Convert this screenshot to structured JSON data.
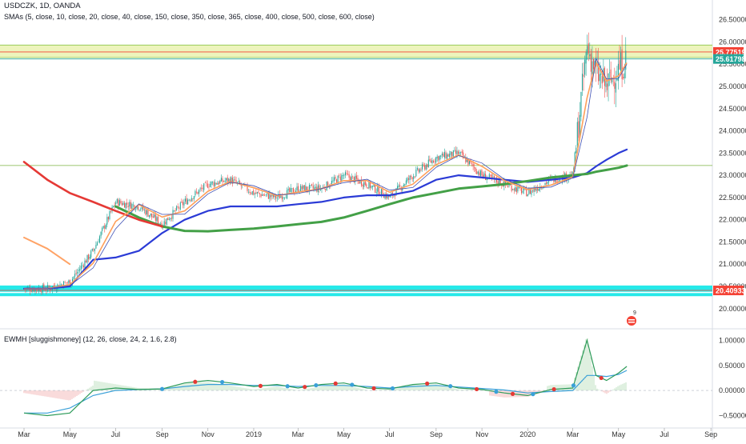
{
  "header": {
    "symbol_line": "USDCZK, 1D, OANDA",
    "sma_line": "SMAs (5, close, 10, close, 20, close, 40, close, 150, close, 350, close, 365, close, 400, close, 500, close, 600, close)",
    "indicator_line": "EWMH [sluggishmoney] (12, 26, close, 24, 2, 1.6, 2.8)"
  },
  "badge": {
    "label": "9",
    "icon": "flag-badge-icon"
  },
  "colors": {
    "candle_up": "#26a69a",
    "candle_down": "#ef5350",
    "sma_fast": "#ef5350",
    "sma_mid": "#ff9f5a",
    "sma_blue": "#2b3bd6",
    "sma_green": "#43a047",
    "sma_red_slow": "#e53935",
    "sma_orange_slow": "#ffa366",
    "band_cyan": "#00e5e5",
    "band_yellow": "#e6f0a0",
    "tag_red": "#f44336",
    "tag_teal": "#26a69a",
    "macd_blue": "#3aa0d8",
    "osc_green": "#2e9b5a",
    "osc_red": "#e53935"
  },
  "chart_data": [
    {
      "type": "line",
      "title": "USDCZK, 1D, OANDA",
      "x": [
        "2018-03-01",
        "2018-04-01",
        "2018-05-01",
        "2018-06-01",
        "2018-07-01",
        "2018-08-01",
        "2018-09-01",
        "2018-10-01",
        "2018-11-01",
        "2018-12-01",
        "2019-01-01",
        "2019-02-01",
        "2019-03-01",
        "2019-04-01",
        "2019-05-01",
        "2019-06-01",
        "2019-07-01",
        "2019-08-01",
        "2019-09-01",
        "2019-10-01",
        "2019-11-01",
        "2019-12-01",
        "2020-01-01",
        "2020-02-01",
        "2020-03-01",
        "2020-03-20",
        "2020-04-01",
        "2020-04-15",
        "2020-05-01",
        "2020-05-12"
      ],
      "series": [
        {
          "type": "candles-close",
          "values": [
            20.45,
            20.45,
            20.6,
            21.3,
            22.4,
            22.3,
            21.9,
            22.4,
            22.8,
            22.9,
            22.6,
            22.5,
            22.7,
            22.7,
            23.0,
            22.8,
            22.5,
            23.0,
            23.4,
            23.5,
            23.0,
            22.8,
            22.6,
            22.9,
            23.0,
            25.9,
            25.3,
            25.0,
            25.4,
            25.62
          ]
        },
        {
          "type": "sma-blue",
          "values": [
            20.45,
            20.45,
            20.5,
            21.1,
            21.15,
            21.3,
            21.7,
            22.0,
            22.2,
            22.3,
            22.3,
            22.3,
            22.35,
            22.4,
            22.5,
            22.55,
            22.55,
            22.65,
            22.9,
            23.0,
            22.95,
            22.9,
            22.85,
            22.9,
            22.95,
            23.05,
            23.2,
            23.35,
            23.5,
            23.58
          ]
        },
        {
          "type": "sma-green",
          "values": [
            null,
            null,
            null,
            null,
            22.3,
            22.05,
            21.85,
            21.75,
            21.74,
            21.77,
            21.8,
            21.85,
            21.9,
            21.95,
            22.05,
            22.2,
            22.35,
            22.5,
            22.6,
            22.7,
            22.75,
            22.8,
            22.87,
            22.95,
            23.0,
            23.03,
            23.08,
            23.12,
            23.17,
            23.22
          ]
        },
        {
          "type": "sma-red-slow",
          "values": [
            23.3,
            22.9,
            22.6,
            22.4,
            22.2,
            22.0,
            21.85,
            null,
            null,
            null,
            null,
            null,
            null,
            null,
            null,
            null,
            null,
            null,
            null,
            null,
            null,
            null,
            null,
            null,
            null,
            null,
            null,
            null,
            null,
            null
          ]
        },
        {
          "type": "sma-orange-slow",
          "values": [
            21.6,
            21.35,
            21.0,
            null,
            null,
            null,
            null,
            null,
            null,
            null,
            null,
            null,
            null,
            null,
            null,
            null,
            null,
            null,
            null,
            null,
            null,
            null,
            null,
            null,
            null,
            null,
            null,
            null,
            null,
            null
          ]
        }
      ],
      "horizontal_levels": [
        23.22
      ],
      "bands": [
        {
          "from": 20.38,
          "to": 20.52,
          "color": "cyan"
        },
        {
          "from": 20.28,
          "to": 20.35,
          "color": "cyan"
        },
        {
          "from": 25.65,
          "to": 25.93,
          "color": "yellow"
        }
      ],
      "price_tags": [
        {
          "value": 25.77519,
          "label": "25.77519",
          "color": "red"
        },
        {
          "value": 25.61798,
          "label": "25.61798",
          "color": "teal"
        },
        {
          "value": 20.40933,
          "label": "20.40933",
          "color": "red"
        }
      ],
      "ylim": [
        19.6,
        26.8
      ],
      "y_ticks": [
        "26.50000",
        "26.00000",
        "25.50000",
        "25.00000",
        "24.50000",
        "24.00000",
        "23.50000",
        "23.00000",
        "22.50000",
        "22.00000",
        "21.50000",
        "21.00000",
        "20.50000",
        "20.00000"
      ],
      "y_tick_values": [
        26.5,
        26.0,
        25.5,
        25.0,
        24.5,
        24.0,
        23.5,
        23.0,
        22.5,
        22.0,
        21.5,
        21.0,
        20.5,
        20.0
      ]
    },
    {
      "type": "line",
      "title": "EWMH [sluggishmoney] (12, 26, close, 24, 2, 1.6, 2.8)",
      "x": [
        "2018-03-01",
        "2018-04-01",
        "2018-05-01",
        "2018-06-01",
        "2018-07-01",
        "2018-08-01",
        "2018-09-01",
        "2018-10-01",
        "2018-11-01",
        "2018-12-01",
        "2019-01-01",
        "2019-02-01",
        "2019-03-01",
        "2019-04-01",
        "2019-05-01",
        "2019-06-01",
        "2019-07-01",
        "2019-08-01",
        "2019-09-01",
        "2019-10-01",
        "2019-11-01",
        "2019-12-01",
        "2020-01-01",
        "2020-02-01",
        "2020-03-01",
        "2020-03-20",
        "2020-04-01",
        "2020-04-15",
        "2020-05-01",
        "2020-05-12"
      ],
      "series": [
        {
          "type": "macd",
          "values": [
            -0.45,
            -0.5,
            -0.45,
            0.0,
            0.05,
            0.02,
            0.03,
            0.15,
            0.2,
            0.15,
            0.08,
            0.12,
            0.05,
            0.12,
            0.15,
            0.05,
            0.03,
            0.12,
            0.15,
            0.05,
            0.02,
            -0.05,
            -0.1,
            0.02,
            0.05,
            1.0,
            0.3,
            0.2,
            0.35,
            0.48
          ]
        },
        {
          "type": "signal",
          "values": [
            -0.45,
            -0.45,
            -0.35,
            -0.1,
            0.0,
            0.02,
            0.03,
            0.08,
            0.12,
            0.12,
            0.1,
            0.1,
            0.08,
            0.1,
            0.1,
            0.08,
            0.05,
            0.08,
            0.1,
            0.07,
            0.04,
            0.01,
            -0.05,
            -0.02,
            0.0,
            0.3,
            0.3,
            0.28,
            0.32,
            0.4
          ]
        }
      ],
      "ylim": [
        -0.7,
        1.15
      ],
      "y_ticks": [
        "1.00000",
        "0.50000",
        "0.00000",
        "−0.50000"
      ],
      "y_tick_values": [
        1.0,
        0.5,
        0.0,
        -0.5
      ]
    }
  ],
  "x_axis": {
    "labels": [
      "Mar",
      "May",
      "Jul",
      "Sep",
      "Nov",
      "2019",
      "Mar",
      "May",
      "Jul",
      "Sep",
      "Nov",
      "2020",
      "Mar",
      "May",
      "Jul",
      "Sep"
    ],
    "dates": [
      "2018-03-01",
      "2018-05-01",
      "2018-07-01",
      "2018-09-01",
      "2018-11-01",
      "2019-01-01",
      "2019-03-01",
      "2019-05-01",
      "2019-07-01",
      "2019-09-01",
      "2019-11-01",
      "2020-01-01",
      "2020-03-01",
      "2020-05-01",
      "2020-07-01",
      "2020-09-01"
    ]
  }
}
